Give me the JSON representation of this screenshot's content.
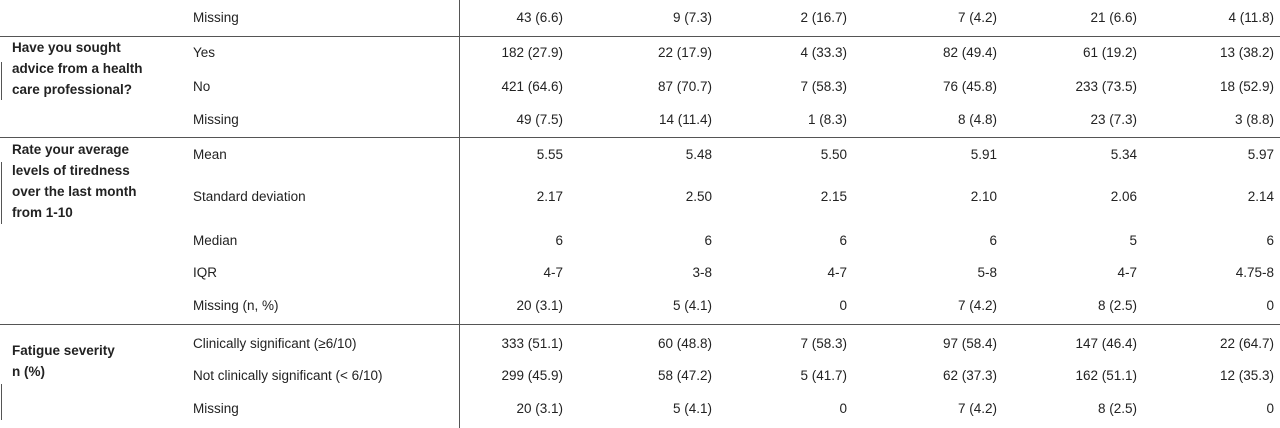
{
  "table": {
    "sections": [
      {
        "rows": [
          {
            "label": "Missing",
            "cells": [
              "43 (6.6)",
              "9 (7.3)",
              "2 (16.7)",
              "7 (4.2)",
              "21 (6.6)",
              "4 (11.8)"
            ]
          }
        ]
      },
      {
        "label": [
          "Have you sought",
          "advice from a health",
          "care professional?"
        ],
        "rows": [
          {
            "label": "Yes",
            "cells": [
              "182 (27.9)",
              "22 (17.9)",
              "4 (33.3)",
              "82 (49.4)",
              "61 (19.2)",
              "13 (38.2)"
            ]
          },
          {
            "label": "No",
            "cells": [
              "421 (64.6)",
              "87 (70.7)",
              "7 (58.3)",
              "76 (45.8)",
              "233 (73.5)",
              "18 (52.9)"
            ]
          },
          {
            "label": "Missing",
            "cells": [
              "49 (7.5)",
              "14 (11.4)",
              "1 (8.3)",
              "8 (4.8)",
              "23 (7.3)",
              "3 (8.8)"
            ]
          }
        ]
      },
      {
        "label": [
          "Rate your average",
          "levels of tiredness",
          "over the last month",
          "from 1-10"
        ],
        "rows": [
          {
            "label": "Mean",
            "cells": [
              "5.55",
              "5.48",
              "5.50",
              "5.91",
              "5.34",
              "5.97"
            ]
          },
          {
            "label": "Standard deviation",
            "cells": [
              "2.17",
              "2.50",
              "2.15",
              "2.10",
              "2.06",
              "2.14"
            ]
          },
          {
            "label": "Median",
            "cells": [
              "6",
              "6",
              "6",
              "6",
              "5",
              "6"
            ]
          },
          {
            "label": "IQR",
            "cells": [
              "4-7",
              "3-8",
              "4-7",
              "5-8",
              "4-7",
              "4.75-8"
            ]
          },
          {
            "label": "Missing (n, %)",
            "cells": [
              "20 (3.1)",
              "5 (4.1)",
              "0",
              "7 (4.2)",
              "8 (2.5)",
              "0"
            ]
          }
        ]
      },
      {
        "label": [
          "Fatigue severity",
          "n (%)"
        ],
        "rows": [
          {
            "label": "Clinically significant (≥6/10)",
            "cells": [
              "333 (51.1)",
              "60 (48.8)",
              "7 (58.3)",
              "97 (58.4)",
              "147 (46.4)",
              "22 (64.7)"
            ]
          },
          {
            "label": "Not clinically significant (< 6/10)",
            "cells": [
              "299 (45.9)",
              "58 (47.2)",
              "5 (41.7)",
              "62 (37.3)",
              "162 (51.1)",
              "12 (35.3)"
            ]
          },
          {
            "label": "Missing",
            "cells": [
              "20 (3.1)",
              "5 (4.1)",
              "0",
              "7 (4.2)",
              "8 (2.5)",
              "0"
            ]
          }
        ]
      }
    ]
  }
}
